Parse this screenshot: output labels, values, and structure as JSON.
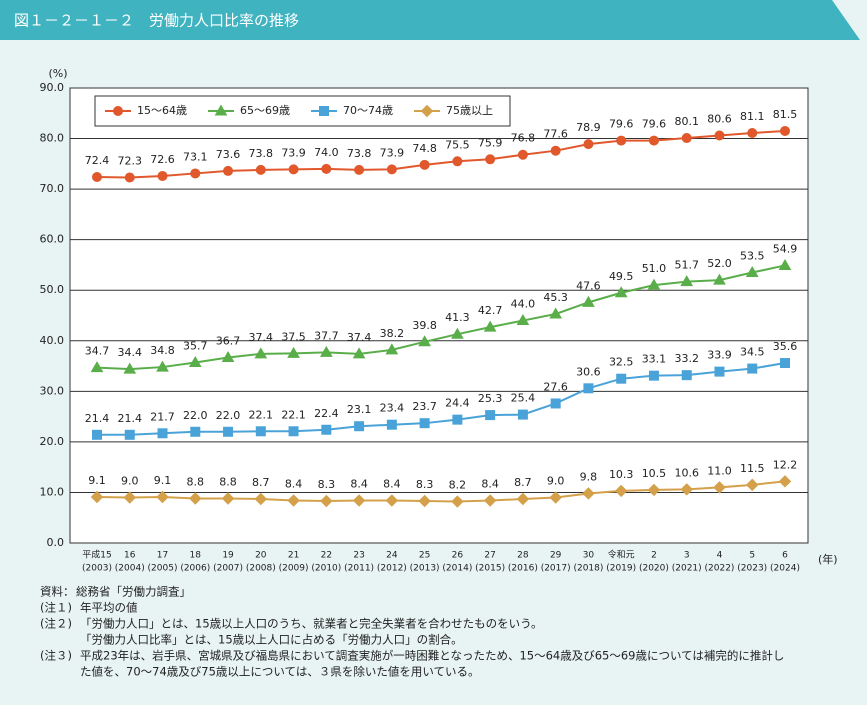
{
  "chart_data": {
    "type": "line",
    "title": "図１－２－１－２　労働力人口比率の推移",
    "y_label": "(%)",
    "x_label": "(年)",
    "categories": [
      "平成15",
      "16",
      "17",
      "18",
      "19",
      "20",
      "21",
      "22",
      "23",
      "24",
      "25",
      "26",
      "27",
      "28",
      "29",
      "30",
      "令和元",
      "2",
      "3",
      "4",
      "5",
      "6"
    ],
    "years": [
      "(2003)",
      "(2004)",
      "(2005)",
      "(2006)",
      "(2007)",
      "(2008)",
      "(2009)",
      "(2010)",
      "(2011)",
      "(2012)",
      "(2013)",
      "(2014)",
      "(2015)",
      "(2016)",
      "(2017)",
      "(2018)",
      "(2019)",
      "(2020)",
      "(2021)",
      "(2022)",
      "(2023)",
      "(2024)"
    ],
    "ylim": [
      0,
      90
    ],
    "yticks": [
      {
        "value": 0,
        "label": "0.0"
      },
      {
        "value": 10,
        "label": "10.0"
      },
      {
        "value": 20,
        "label": "20.0"
      },
      {
        "value": 30,
        "label": "30.0"
      },
      {
        "value": 40,
        "label": "40.0"
      },
      {
        "value": 50,
        "label": "50.0"
      },
      {
        "value": 60,
        "label": "60.0"
      },
      {
        "value": 70,
        "label": "70.0"
      },
      {
        "value": 80,
        "label": "80.0"
      },
      {
        "value": 90,
        "label": "90.0"
      }
    ],
    "grid": true,
    "legend": "upper left",
    "series": [
      {
        "name": "15～64歳",
        "color": "#e0582b",
        "marker": "circle",
        "values": [
          72.4,
          72.3,
          72.6,
          73.1,
          73.6,
          73.8,
          73.9,
          74.0,
          73.8,
          73.9,
          74.8,
          75.5,
          75.9,
          76.8,
          77.6,
          78.9,
          79.6,
          79.6,
          80.1,
          80.6,
          81.1,
          81.5
        ],
        "value_labels": [
          "72.4",
          "72.3",
          "72.6",
          "73.1",
          "73.6",
          "73.8",
          "73.9",
          "74.0",
          "73.8",
          "73.9",
          "74.8",
          "75.5",
          "75.9",
          "76.8",
          "77.6",
          "78.9",
          "79.6",
          "79.6",
          "80.1",
          "80.6",
          "81.1",
          "81.5"
        ]
      },
      {
        "name": "65～69歳",
        "color": "#5aae4a",
        "marker": "triangle",
        "values": [
          34.7,
          34.4,
          34.8,
          35.7,
          36.7,
          37.4,
          37.5,
          37.7,
          37.4,
          38.2,
          39.8,
          41.3,
          42.7,
          44.0,
          45.3,
          47.6,
          49.5,
          51.0,
          51.7,
          52.0,
          53.5,
          54.9
        ],
        "value_labels": [
          "34.7",
          "34.4",
          "34.8",
          "35.7",
          "36.7",
          "37.4",
          "37.5",
          "37.7",
          "37.4",
          "38.2",
          "39.8",
          "41.3",
          "42.7",
          "44.0",
          "45.3",
          "47.6",
          "49.5",
          "51.0",
          "51.7",
          "52.0",
          "53.5",
          "54.9"
        ]
      },
      {
        "name": "70～74歳",
        "color": "#4aa3d8",
        "marker": "square",
        "values": [
          21.4,
          21.4,
          21.7,
          22.0,
          22.0,
          22.1,
          22.1,
          22.4,
          23.1,
          23.4,
          23.7,
          24.4,
          25.3,
          25.4,
          27.6,
          30.6,
          32.5,
          33.1,
          33.2,
          33.9,
          34.5,
          35.6
        ],
        "value_labels": [
          "21.4",
          "21.4",
          "21.7",
          "22.0",
          "22.0",
          "22.1",
          "22.1",
          "22.4",
          "23.1",
          "23.4",
          "23.7",
          "24.4",
          "25.3",
          "25.4",
          "27.6",
          "30.6",
          "32.5",
          "33.1",
          "33.2",
          "33.9",
          "34.5",
          "35.6"
        ]
      },
      {
        "name": "75歳以上",
        "color": "#d4a04a",
        "marker": "diamond",
        "values": [
          9.1,
          9.0,
          9.1,
          8.8,
          8.8,
          8.7,
          8.4,
          8.3,
          8.4,
          8.4,
          8.3,
          8.2,
          8.4,
          8.7,
          9.0,
          9.8,
          10.3,
          10.5,
          10.6,
          11.0,
          11.5,
          12.2
        ],
        "value_labels": [
          "9.1",
          "9.0",
          "9.1",
          "8.8",
          "8.8",
          "8.7",
          "8.4",
          "8.3",
          "8.4",
          "8.4",
          "8.3",
          "8.2",
          "8.4",
          "8.7",
          "9.0",
          "9.8",
          "10.3",
          "10.5",
          "10.6",
          "11.0",
          "11.5",
          "12.2"
        ]
      }
    ],
    "notes": [
      {
        "label": "資料：",
        "lines": [
          "総務省「労働力調査」"
        ]
      },
      {
        "label": "(注１)",
        "lines": [
          "年平均の値"
        ]
      },
      {
        "label": "(注２)",
        "lines": [
          "「労働力人口」とは、15歳以上人口のうち、就業者と完全失業者を合わせたものをいう。",
          "「労働力人口比率」とは、15歳以上人口に占める「労働力人口」の割合。"
        ]
      },
      {
        "label": "(注３)",
        "lines": [
          "平成23年は、岩手県、宮城県及び福島県において調査実施が一時困難となったため、15～64歳及び65～69歳については補完的に推計し",
          "た値を、70～74歳及び75歳以上については、３県を除いた値を用いている。"
        ]
      }
    ]
  }
}
